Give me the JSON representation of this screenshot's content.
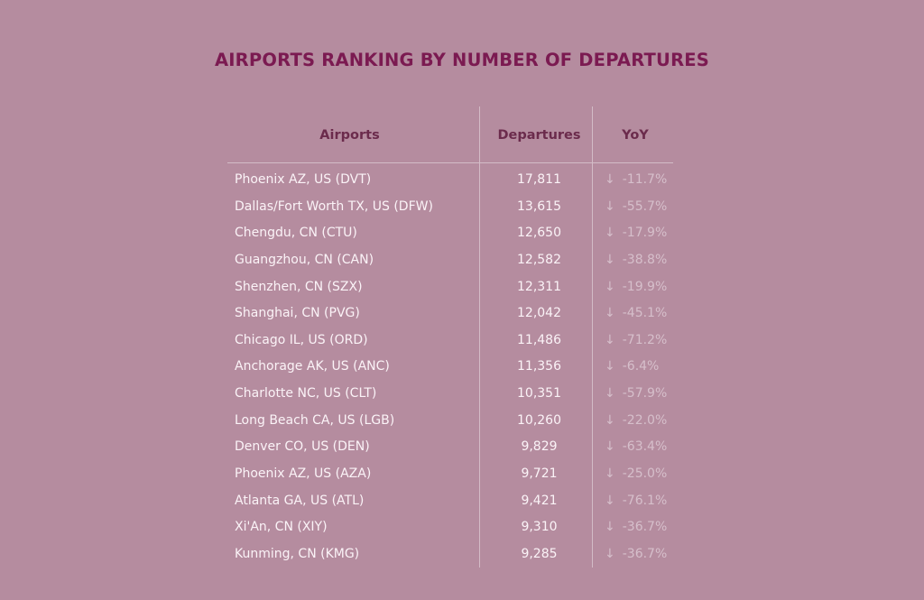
{
  "chart_data": {
    "type": "table",
    "title": "AIRPORTS RANKING BY NUMBER OF DEPARTURES",
    "columns": [
      "Airports",
      "Departures",
      "YoY"
    ],
    "rows": [
      {
        "airport": "Phoenix AZ, US (DVT)",
        "departures": "17,811",
        "yoy": "-11.7%"
      },
      {
        "airport": "Dallas/Fort Worth TX, US (DFW)",
        "departures": "13,615",
        "yoy": "-55.7%"
      },
      {
        "airport": "Chengdu, CN (CTU)",
        "departures": "12,650",
        "yoy": "-17.9%"
      },
      {
        "airport": "Guangzhou, CN (CAN)",
        "departures": "12,582",
        "yoy": "-38.8%"
      },
      {
        "airport": "Shenzhen, CN (SZX)",
        "departures": "12,311",
        "yoy": "-19.9%"
      },
      {
        "airport": "Shanghai, CN (PVG)",
        "departures": "12,042",
        "yoy": "-45.1%"
      },
      {
        "airport": "Chicago IL, US (ORD)",
        "departures": "11,486",
        "yoy": "-71.2%"
      },
      {
        "airport": "Anchorage AK, US (ANC)",
        "departures": "11,356",
        "yoy": "-6.4%"
      },
      {
        "airport": "Charlotte NC, US (CLT)",
        "departures": "10,351",
        "yoy": "-57.9%"
      },
      {
        "airport": "Long Beach CA, US (LGB)",
        "departures": "10,260",
        "yoy": "-22.0%"
      },
      {
        "airport": "Denver CO, US (DEN)",
        "departures": "9,829",
        "yoy": "-63.4%"
      },
      {
        "airport": "Phoenix AZ, US (AZA)",
        "departures": "9,721",
        "yoy": "-25.0%"
      },
      {
        "airport": "Atlanta GA, US (ATL)",
        "departures": "9,421",
        "yoy": "-76.1%"
      },
      {
        "airport": "Xi'An, CN (XIY)",
        "departures": "9,310",
        "yoy": "-36.7%"
      },
      {
        "airport": "Kunming, CN (KMG)",
        "departures": "9,285",
        "yoy": "-36.7%"
      }
    ],
    "yoy_icon": "arrow-down-icon",
    "arrow_glyph": "↓"
  },
  "colors": {
    "background": "#b58c9f",
    "title": "#7b1a51",
    "header": "#6b2b4c",
    "yoy": "#d6bfcb"
  }
}
